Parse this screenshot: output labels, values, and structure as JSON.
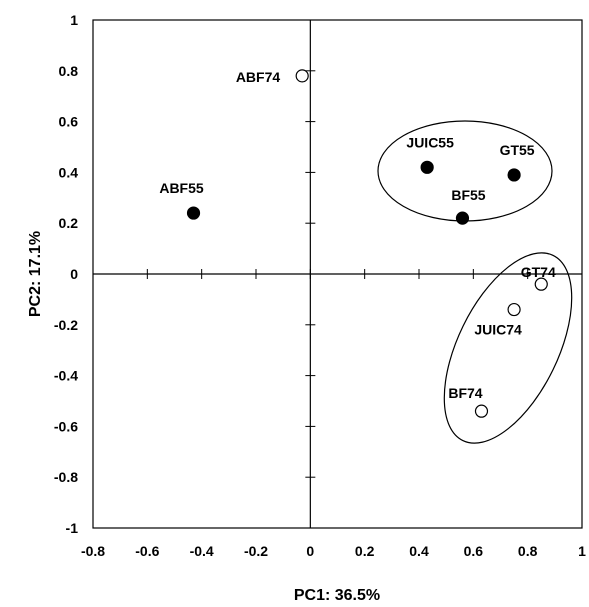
{
  "chart_data": {
    "type": "scatter",
    "title": "",
    "xlabel": "PC1: 36.5%",
    "ylabel": "PC2: 17.1%",
    "xlim": [
      -0.8,
      1
    ],
    "ylim": [
      -1,
      1
    ],
    "x_ticks": [
      "-0.8",
      "-0.6",
      "-0.4",
      "-0.2",
      "0",
      "0.2",
      "0.4",
      "0.6",
      "0.8",
      "1"
    ],
    "y_ticks": [
      "-1",
      "-0.8",
      "-0.6",
      "-0.4",
      "-0.2",
      "0",
      "0.2",
      "0.4",
      "0.6",
      "0.8",
      "1"
    ],
    "grid": false,
    "points": [
      {
        "label": "ABF74",
        "x": -0.03,
        "y": 0.78,
        "marker": "open"
      },
      {
        "label": "ABF55",
        "x": -0.43,
        "y": 0.24,
        "marker": "filled"
      },
      {
        "label": "JUIC55",
        "x": 0.43,
        "y": 0.42,
        "marker": "filled"
      },
      {
        "label": "GT55",
        "x": 0.75,
        "y": 0.39,
        "marker": "filled"
      },
      {
        "label": "BF55",
        "x": 0.56,
        "y": 0.22,
        "marker": "filled"
      },
      {
        "label": "GT74",
        "x": 0.85,
        "y": -0.04,
        "marker": "open"
      },
      {
        "label": "JUIC74",
        "x": 0.75,
        "y": -0.14,
        "marker": "open"
      },
      {
        "label": "BF74",
        "x": 0.63,
        "y": -0.54,
        "marker": "open"
      }
    ]
  }
}
